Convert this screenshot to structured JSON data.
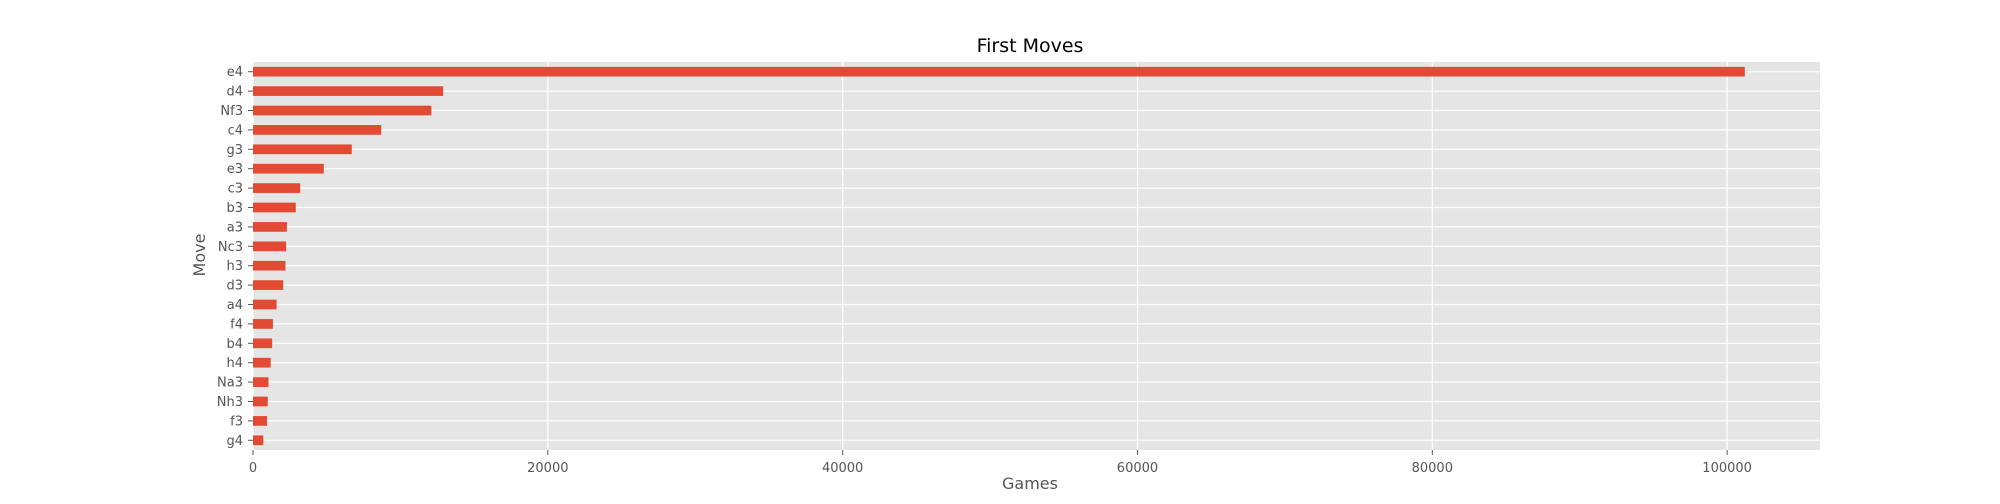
{
  "chart_data": {
    "type": "bar",
    "orientation": "horizontal",
    "title": "First Moves",
    "xlabel": "Games",
    "ylabel": "Move",
    "categories": [
      "e4",
      "d4",
      "Nf3",
      "c4",
      "g3",
      "e3",
      "c3",
      "b3",
      "a3",
      "Nc3",
      "h3",
      "d3",
      "a4",
      "f4",
      "b4",
      "h4",
      "Na3",
      "Nh3",
      "f3",
      "g4"
    ],
    "values": [
      101200,
      12900,
      12100,
      8700,
      6700,
      4800,
      3200,
      2900,
      2300,
      2250,
      2200,
      2050,
      1600,
      1350,
      1300,
      1200,
      1050,
      1000,
      950,
      700
    ],
    "xlim": [
      0,
      106300
    ],
    "xticks": [
      0,
      20000,
      40000,
      60000,
      80000,
      100000
    ],
    "grid": true,
    "colors": {
      "bar": "#e24a33",
      "plot_background": "#e5e5e5",
      "grid": "#ffffff",
      "text": "#555555",
      "title": "#000000"
    }
  }
}
